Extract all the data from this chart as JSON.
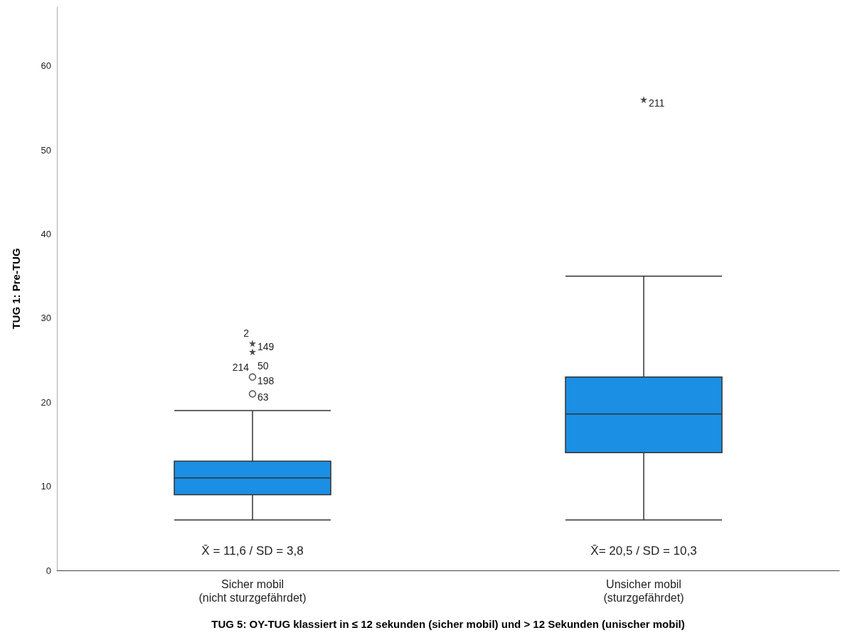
{
  "chart_data": {
    "type": "box",
    "ylabel": "TUG 1: Pre-TUG",
    "xlabel": "TUG 5: OY-TUG klassiert in ≤ 12 sekunden (sicher mobil) und > 12 Sekunden (unischer mobil)",
    "categories": [
      "Sicher mobil\n(nicht sturzgefährdet)",
      "Unsicher mobil\n(sturzgefährdet)"
    ],
    "ylim": [
      0,
      67
    ],
    "yticks": [
      0,
      10,
      20,
      30,
      40,
      50,
      60
    ],
    "grid": false,
    "series": [
      {
        "color": "#1a8fe3",
        "boxes": [
          {
            "low": 6,
            "q1": 9,
            "median": 11,
            "q3": 13,
            "high": 19
          },
          {
            "low": 6,
            "q1": 14,
            "median": 18.6,
            "q3": 23,
            "high": 35
          }
        ]
      },
      {
        "type": "scatter",
        "marker": "circle",
        "color": "#222222",
        "x": [
          "Sicher mobil\n(nicht sturzgefährdet)",
          "Sicher mobil\n(nicht sturzgefährdet)"
        ],
        "values": [
          21,
          23
        ]
      },
      {
        "type": "scatter",
        "marker": "star",
        "color": "#222222",
        "x": [
          "Sicher mobil\n(nicht sturzgefährdet)",
          "Sicher mobil\n(nicht sturzgefährdet)",
          "Unsicher mobil\n(sturzgefährdet)"
        ],
        "values": [
          26,
          27,
          56
        ]
      }
    ],
    "annotations": [
      "X̄ = 11,6 / SD = 3,8",
      "X̄= 20,5 / SD = 10,3",
      {
        "text": "149",
        "x": "Sicher mobil\n(nicht sturzgefährdet)",
        "y": 27
      },
      {
        "text": "2",
        "x": "Sicher mobil\n(nicht sturzgefährdet)",
        "y": 27
      },
      {
        "text": "198",
        "x": "Sicher mobil\n(nicht sturzgefährdet)",
        "y": 23
      },
      {
        "text": "214",
        "x": "Sicher mobil\n(nicht sturzgefährdet)",
        "y": 23
      },
      {
        "text": "50",
        "x": "Sicher mobil\n(nicht sturzgefährdet)",
        "y": 23
      },
      {
        "text": "63",
        "x": "Sicher mobil\n(nicht sturzgefährdet)",
        "y": 21
      },
      {
        "text": "211",
        "x": "Unsicher mobil\n(sturzgefährdet)",
        "y": 56
      }
    ]
  }
}
